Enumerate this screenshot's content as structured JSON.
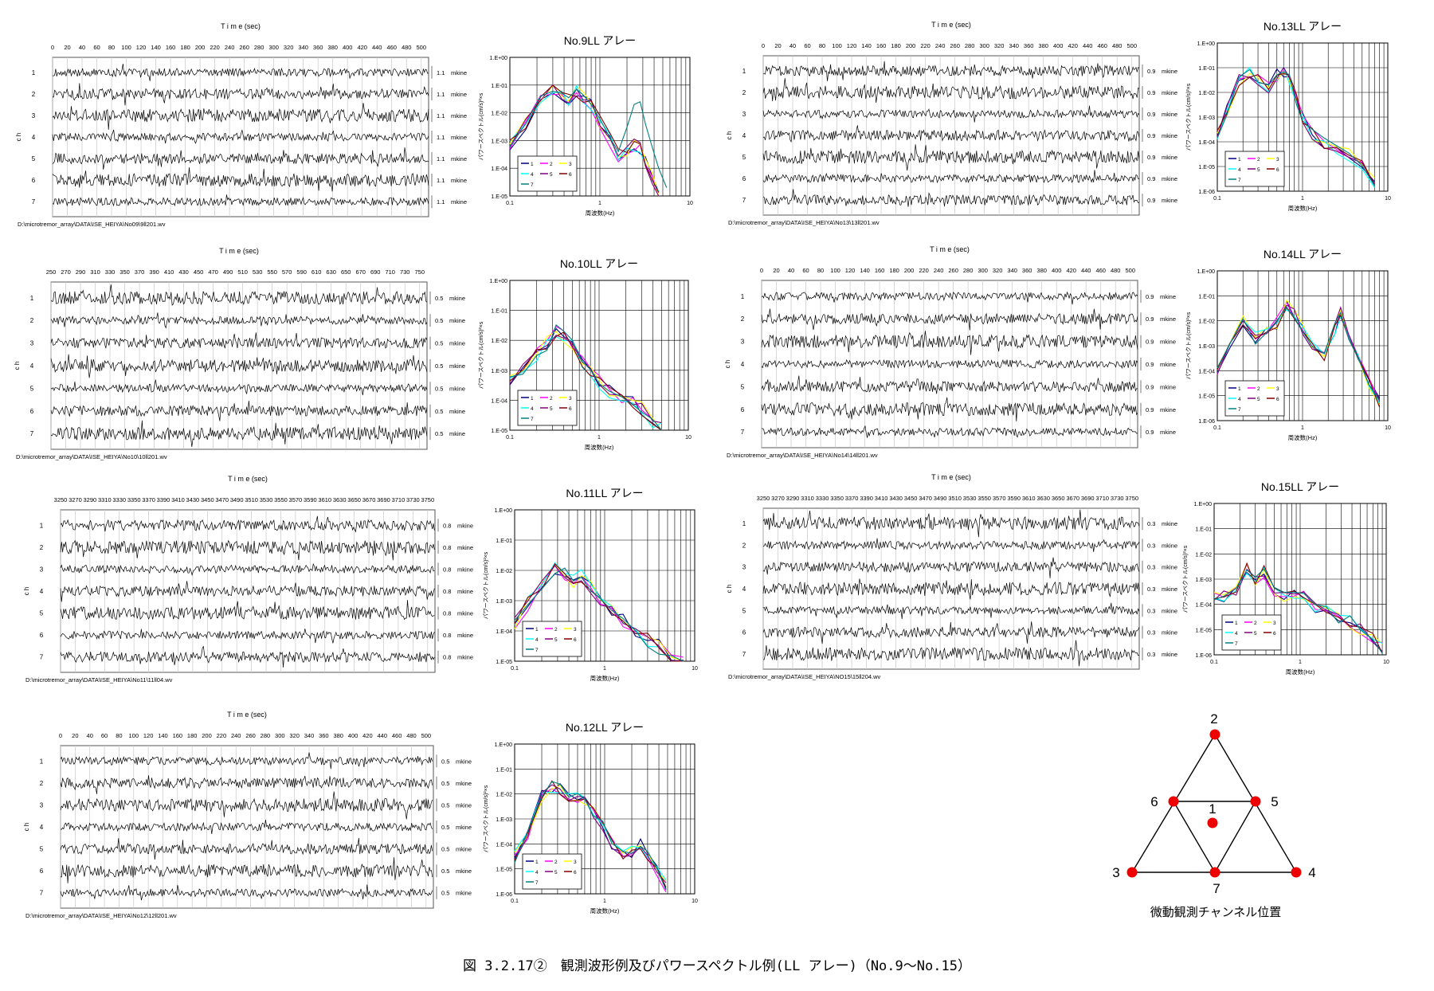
{
  "caption": "図 3.2.17②　観測波形例及びパワースペクトル例(LL アレー)（No.9～No.15）",
  "waveform_common": {
    "title": "T i m e (sec)",
    "ylabel": "c h",
    "channels": [
      "1",
      "2",
      "3",
      "4",
      "5",
      "6",
      "7"
    ],
    "unit": "mkine"
  },
  "spectrum_common": {
    "ylabel": "パワースペクトル(cm/s)²×s",
    "xlabel": "周波数(Hz)",
    "y_tick_labels": [
      "1.E+00",
      "1.E-01",
      "1.E-02",
      "1.E-03",
      "1.E-04",
      "1.E-05"
    ],
    "x_tick_labels": [
      "0.1",
      "1",
      "10"
    ],
    "legend": [
      "1",
      "2",
      "3",
      "4",
      "5",
      "6",
      "7"
    ],
    "colors": [
      "#000080",
      "#ff00ff",
      "#ffff00",
      "#00ffff",
      "#800080",
      "#800000",
      "#008080"
    ]
  },
  "waveforms": [
    {
      "id": "no9",
      "ticks": [
        "0",
        "20",
        "40",
        "60",
        "80",
        "100",
        "120",
        "140",
        "160",
        "180",
        "200",
        "220",
        "240",
        "260",
        "280",
        "300",
        "320",
        "340",
        "360",
        "380",
        "400",
        "420",
        "440",
        "460",
        "480",
        "500"
      ],
      "xlim": [
        0,
        510
      ],
      "scale": "1.1",
      "path": "D:\\microtremor_array\\DATA\\ISE_HEIYA\\No09\\9ll201.wv"
    },
    {
      "id": "no13",
      "ticks": [
        "0",
        "20",
        "40",
        "60",
        "80",
        "100",
        "120",
        "140",
        "160",
        "180",
        "200",
        "220",
        "240",
        "260",
        "280",
        "300",
        "320",
        "340",
        "360",
        "380",
        "400",
        "420",
        "440",
        "460",
        "480",
        "500"
      ],
      "xlim": [
        0,
        510
      ],
      "scale": "0.9",
      "path": "D:\\microtremor_array\\DATA\\ISE_HEIYA\\No13\\13ll201.wv"
    },
    {
      "id": "no10",
      "ticks": [
        "250",
        "270",
        "290",
        "310",
        "330",
        "350",
        "370",
        "390",
        "410",
        "430",
        "450",
        "470",
        "490",
        "510",
        "530",
        "550",
        "570",
        "590",
        "610",
        "630",
        "650",
        "670",
        "690",
        "710",
        "730",
        "750"
      ],
      "xlim": [
        250,
        760
      ],
      "scale": "0.5",
      "path": "D:\\microtremor_array\\DATA\\ISE_HEIYA\\No10\\10ll201.wv"
    },
    {
      "id": "no14",
      "ticks": [
        "0",
        "20",
        "40",
        "60",
        "80",
        "100",
        "120",
        "140",
        "160",
        "180",
        "200",
        "220",
        "240",
        "260",
        "280",
        "300",
        "320",
        "340",
        "360",
        "380",
        "400",
        "420",
        "440",
        "460",
        "480",
        "500"
      ],
      "xlim": [
        0,
        510
      ],
      "scale": "0.9",
      "path": "D:\\microtremor_array\\DATA\\ISE_HEIYA\\No14\\14ll201.wv"
    },
    {
      "id": "no11",
      "ticks": [
        "3250",
        "3270",
        "3290",
        "3310",
        "3330",
        "3350",
        "3370",
        "3390",
        "3410",
        "3430",
        "3450",
        "3470",
        "3490",
        "3510",
        "3530",
        "3550",
        "3570",
        "3590",
        "3610",
        "3630",
        "3650",
        "3670",
        "3690",
        "3710",
        "3730",
        "3750"
      ],
      "xlim": [
        3250,
        3760
      ],
      "scale": "0.8",
      "path": "D:\\microtremor_array\\DATA\\ISE_HEIYA\\No11\\11ll04.wv"
    },
    {
      "id": "no15",
      "ticks": [
        "3250",
        "3270",
        "3290",
        "3310",
        "3330",
        "3350",
        "3370",
        "3390",
        "3410",
        "3430",
        "3450",
        "3470",
        "3490",
        "3510",
        "3530",
        "3550",
        "3570",
        "3590",
        "3610",
        "3630",
        "3650",
        "3670",
        "3690",
        "3710",
        "3730",
        "3750"
      ],
      "xlim": [
        3250,
        3760
      ],
      "scale": "0.3",
      "path": "D:\\microtremor_array\\DATA\\ISE_HEIYA\\NO15\\15ll204.wv"
    },
    {
      "id": "no12",
      "ticks": [
        "0",
        "20",
        "40",
        "60",
        "80",
        "100",
        "120",
        "140",
        "160",
        "180",
        "200",
        "220",
        "240",
        "260",
        "280",
        "300",
        "320",
        "340",
        "360",
        "380",
        "400",
        "420",
        "440",
        "460",
        "480",
        "500"
      ],
      "xlim": [
        0,
        510
      ],
      "scale": "0.5",
      "path": "D:\\microtremor_array\\DATA\\ISE_HEIYA\\No12\\12ll201.wv"
    }
  ],
  "spectra": [
    {
      "id": "no9",
      "title": "No.9LL アレー"
    },
    {
      "id": "no13",
      "title": "No.13LL アレー"
    },
    {
      "id": "no10",
      "title": "No.10LL アレー"
    },
    {
      "id": "no14",
      "title": "No.14LL アレー"
    },
    {
      "id": "no11",
      "title": "No.11LL アレー"
    },
    {
      "id": "no15",
      "title": "No.15LL アレー"
    },
    {
      "id": "no12",
      "title": "No.12LL アレー"
    }
  ],
  "chart_data": [
    {
      "type": "line",
      "id": "no9",
      "xscale": "log",
      "yscale": "log",
      "xlim": [
        0.1,
        10
      ],
      "ylim": [
        1e-05,
        1
      ],
      "series": [
        {
          "name": "1",
          "x": [
            0.1,
            0.15,
            0.22,
            0.3,
            0.38,
            0.45,
            0.55,
            0.65,
            0.8,
            1,
            1.3,
            1.6,
            2,
            2.4,
            2.8,
            3.2,
            3.8,
            4.5
          ],
          "y": [
            0.0006,
            0.004,
            0.04,
            0.07,
            0.05,
            0.03,
            0.06,
            0.04,
            0.02,
            0.005,
            0.001,
            0.0003,
            0.0004,
            0.0007,
            0.0005,
            0.0002,
            5e-05,
            1e-05
          ]
        },
        {
          "name": "7",
          "x": [
            0.1,
            0.15,
            0.22,
            0.3,
            0.38,
            0.45,
            0.55,
            0.65,
            0.8,
            1,
            1.3,
            1.6,
            2,
            2.4,
            2.8,
            3.2,
            3.8,
            4.5,
            5.5
          ],
          "y": [
            0.0006,
            0.004,
            0.04,
            0.06,
            0.05,
            0.035,
            0.07,
            0.045,
            0.02,
            0.006,
            0.0012,
            0.0004,
            0.003,
            0.02,
            0.025,
            0.004,
            0.0006,
            0.0001,
            2e-05
          ]
        }
      ]
    },
    {
      "type": "line",
      "id": "no13",
      "xscale": "log",
      "yscale": "log",
      "xlim": [
        0.1,
        10
      ],
      "ylim": [
        1e-06,
        1
      ],
      "series": [
        {
          "name": "1",
          "x": [
            0.1,
            0.13,
            0.18,
            0.24,
            0.3,
            0.4,
            0.5,
            0.6,
            0.7,
            0.85,
            1,
            1.3,
            1.8,
            2.5,
            3.5,
            5,
            7
          ],
          "y": [
            0.0002,
            0.002,
            0.03,
            0.06,
            0.03,
            0.015,
            0.05,
            0.07,
            0.03,
            0.005,
            0.001,
            0.0002,
            8e-05,
            5e-05,
            3e-05,
            1e-05,
            2e-06
          ]
        }
      ]
    },
    {
      "type": "line",
      "id": "no10",
      "xscale": "log",
      "yscale": "log",
      "xlim": [
        0.1,
        10
      ],
      "ylim": [
        1e-05,
        1
      ],
      "series": [
        {
          "name": "1",
          "x": [
            0.1,
            0.14,
            0.2,
            0.26,
            0.33,
            0.4,
            0.5,
            0.65,
            0.8,
            1,
            1.3,
            1.8,
            2.4,
            3,
            4,
            5
          ],
          "y": [
            0.0004,
            0.001,
            0.003,
            0.008,
            0.02,
            0.015,
            0.006,
            0.002,
            0.0008,
            0.0004,
            0.0002,
            0.0001,
            8e-05,
            5e-05,
            2e-05,
            1e-05
          ]
        }
      ]
    },
    {
      "type": "line",
      "id": "no14",
      "xscale": "log",
      "yscale": "log",
      "xlim": [
        0.1,
        10
      ],
      "ylim": [
        1e-06,
        1
      ],
      "series": [
        {
          "name": "1",
          "x": [
            0.1,
            0.14,
            0.2,
            0.28,
            0.38,
            0.5,
            0.65,
            0.8,
            1,
            1.3,
            1.8,
            2.4,
            2.8,
            3.5,
            4.5,
            6,
            8
          ],
          "y": [
            0.0001,
            0.0008,
            0.01,
            0.002,
            0.003,
            0.008,
            0.05,
            0.02,
            0.005,
            0.001,
            0.0003,
            0.005,
            0.02,
            0.002,
            0.0003,
            3e-05,
            5e-06
          ]
        }
      ]
    },
    {
      "type": "line",
      "id": "no11",
      "xscale": "log",
      "yscale": "log",
      "xlim": [
        0.1,
        10
      ],
      "ylim": [
        1e-05,
        1
      ],
      "series": [
        {
          "name": "1",
          "x": [
            0.1,
            0.14,
            0.2,
            0.28,
            0.36,
            0.45,
            0.55,
            0.7,
            0.9,
            1.2,
            1.6,
            2.2,
            3,
            4,
            5.5,
            7.5
          ],
          "y": [
            0.0002,
            0.0008,
            0.003,
            0.012,
            0.008,
            0.004,
            0.006,
            0.003,
            0.001,
            0.0004,
            0.0002,
            8e-05,
            5e-05,
            3e-05,
            1e-05,
            8e-06
          ]
        }
      ]
    },
    {
      "type": "line",
      "id": "no15",
      "xscale": "log",
      "yscale": "log",
      "xlim": [
        0.1,
        10
      ],
      "ylim": [
        1e-06,
        1
      ],
      "series": [
        {
          "name": "1",
          "x": [
            0.1,
            0.13,
            0.18,
            0.24,
            0.3,
            0.38,
            0.5,
            0.65,
            0.85,
            1.1,
            1.5,
            2,
            2.8,
            3.8,
            5,
            7,
            9
          ],
          "y": [
            0.0002,
            0.0002,
            0.0004,
            0.003,
            0.0008,
            0.002,
            0.0003,
            0.0002,
            0.0003,
            0.0002,
            8e-05,
            5e-05,
            3e-05,
            2e-05,
            1e-05,
            5e-06,
            2e-06
          ]
        }
      ]
    },
    {
      "type": "line",
      "id": "no12",
      "xscale": "log",
      "yscale": "log",
      "xlim": [
        0.1,
        10
      ],
      "ylim": [
        1e-06,
        1
      ],
      "series": [
        {
          "name": "1",
          "x": [
            0.1,
            0.14,
            0.2,
            0.26,
            0.32,
            0.4,
            0.5,
            0.6,
            0.75,
            0.95,
            1.2,
            1.6,
            2,
            2.5,
            3,
            3.8,
            4.8
          ],
          "y": [
            3e-05,
            0.0002,
            0.008,
            0.02,
            0.015,
            0.006,
            0.008,
            0.005,
            0.002,
            0.0005,
            0.0001,
            3e-05,
            5e-05,
            0.0001,
            3e-05,
            8e-06,
            2e-06
          ]
        }
      ]
    }
  ],
  "array_diagram": {
    "title": "微動観測チャンネル位置",
    "point_labels": [
      "1",
      "2",
      "3",
      "4",
      "5",
      "6",
      "7"
    ],
    "point_color": "#ee0000"
  }
}
